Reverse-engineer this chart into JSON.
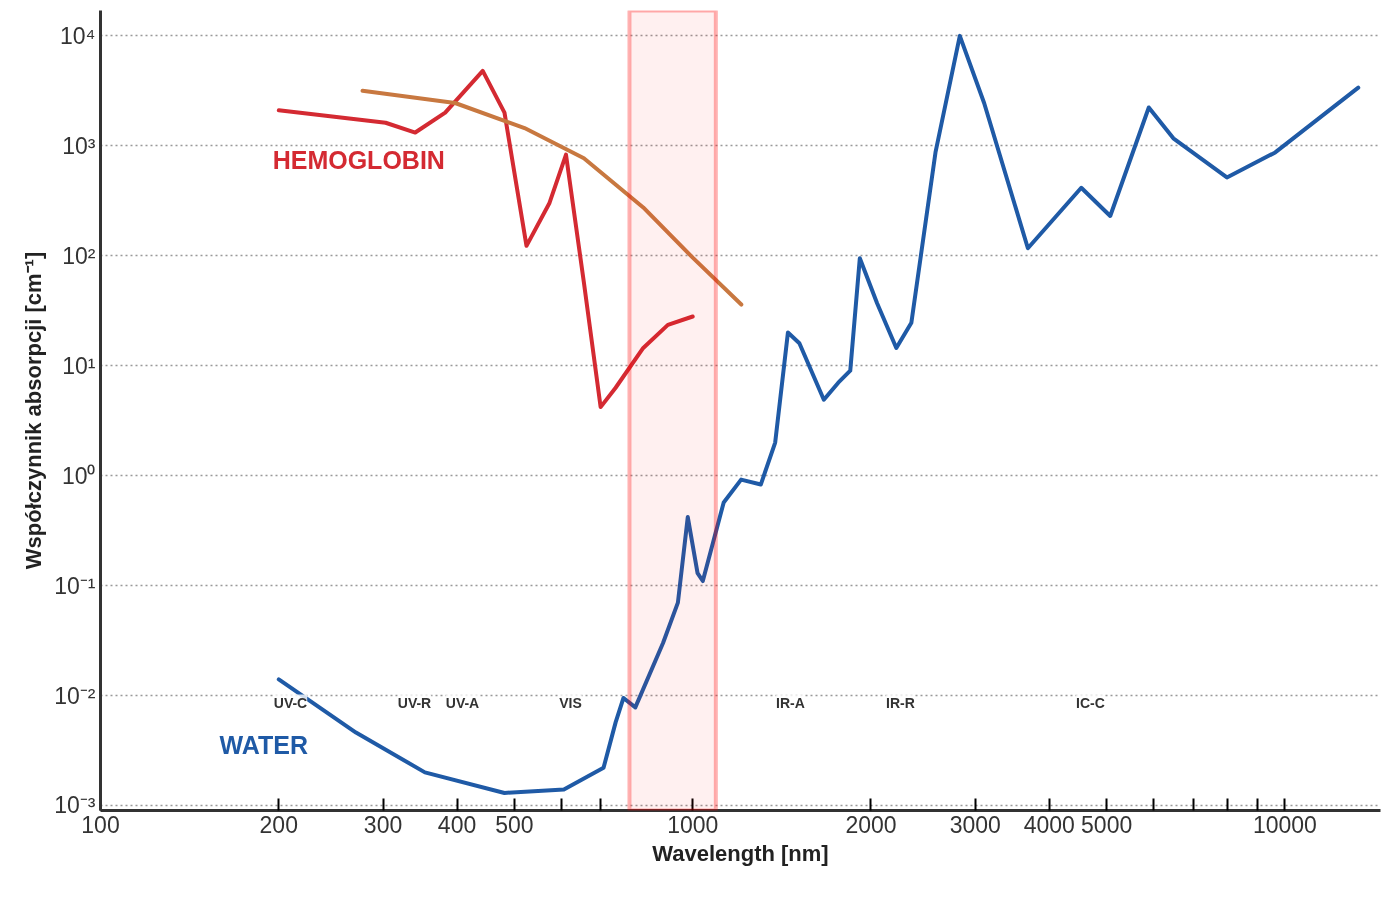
{
  "chart_data": {
    "type": "line",
    "xlabel": "Wavelength [nm]",
    "ylabel": "Współczynnik absorpcji [cm⁻¹]",
    "log": "xy",
    "grid": "y",
    "line_style": "solid",
    "xlim": [
      100,
      14500
    ],
    "ylim": [
      0.0009,
      17000
    ],
    "xticks": [
      100,
      200,
      300,
      400,
      500,
      {
        "value": 600,
        "label": null
      },
      {
        "value": 700,
        "label": null
      },
      1000,
      2000,
      3000,
      4000,
      5000,
      {
        "value": 6000,
        "label": null
      },
      {
        "value": 7000,
        "label": null
      },
      {
        "value": 8000,
        "label": null
      },
      {
        "value": 9000,
        "label": null
      },
      10000
    ],
    "yticks": [
      {
        "value": 0.001,
        "label": "10⁻³"
      },
      {
        "value": 0.01,
        "label": "10⁻²"
      },
      {
        "value": 0.1,
        "label": "10⁻¹"
      },
      {
        "value": 1,
        "label": "10⁰"
      },
      {
        "value": 10,
        "label": "10¹"
      },
      {
        "value": 100,
        "label": "10²"
      },
      {
        "value": 1000,
        "label": "10³"
      },
      {
        "value": 10000,
        "label": "10⁴"
      }
    ],
    "series": [
      {
        "name": "HEMOGLOBIN",
        "color": "#d42a32",
        "x": [
          200,
          303,
          340,
          382,
          442,
          481,
          524,
          573,
          611,
          655,
          699,
          741,
          825,
          908,
          1000
        ],
        "values": [
          2100,
          1620,
          1320,
          2000,
          4800,
          2000,
          123,
          302,
          830,
          57,
          4.2,
          6.3,
          14.5,
          23.5,
          28
        ]
      },
      {
        "color": "#c87840",
        "x": [
          277,
          397,
          520,
          655,
          825,
          1000,
          1208
        ],
        "values": [
          3160,
          2450,
          1450,
          770,
          275,
          96,
          36
        ]
      },
      {
        "name": "WATER",
        "color": "#1f5aa6",
        "x": [
          200,
          270,
          353,
          481,
          606,
          707,
          741,
          764,
          800,
          891,
          944,
          981,
          1019,
          1040,
          1128,
          1207,
          1303,
          1378,
          1448,
          1514,
          1665,
          1761,
          1845,
          1915,
          2048,
          2207,
          2340,
          2570,
          2825,
          3105,
          3681,
          4530,
          5070,
          5890,
          6480,
          7980,
          9630,
          13300
        ],
        "values": [
          0.014,
          0.0046,
          0.002,
          0.0013,
          0.0014,
          0.0022,
          0.0057,
          0.0095,
          0.0078,
          0.03,
          0.07,
          0.42,
          0.13,
          0.11,
          0.57,
          0.92,
          0.83,
          2,
          20,
          16,
          4.9,
          7,
          9,
          95,
          37,
          14.5,
          24.6,
          870,
          10000,
          2450,
          117,
          415,
          230,
          2230,
          1170,
          515,
          870,
          3380
        ]
      }
    ],
    "bands": [
      {
        "axis": "x",
        "from": 782,
        "to": 1094,
        "color": "#ff0000"
      }
    ],
    "annotations": [
      "UV-C",
      "UV-R",
      "UV-A",
      "VIS",
      "IR-A",
      "IR-R",
      "IC-C"
    ]
  }
}
